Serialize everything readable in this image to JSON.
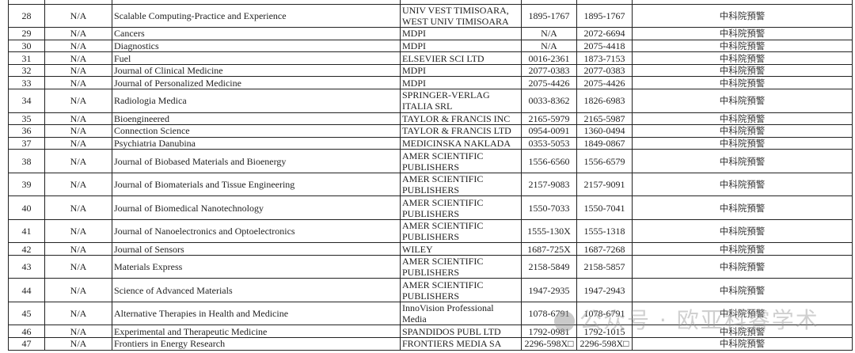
{
  "rows": [
    {
      "no": "28",
      "cat": "N/A",
      "journal": "Scalable Computing-Practice and Experience",
      "publisher": "UNIV VEST TIMISOARA, WEST UNIV TIMISOARA",
      "issn": "1895-1767",
      "eissn": "1895-1767",
      "warning": "中科院預警",
      "tall": true
    },
    {
      "no": "29",
      "cat": "N/A",
      "journal": "Cancers",
      "publisher": "MDPI",
      "issn": "N/A",
      "eissn": "2072-6694",
      "warning": "中科院預警"
    },
    {
      "no": "30",
      "cat": "N/A",
      "journal": "Diagnostics",
      "publisher": "MDPI",
      "issn": "N/A",
      "eissn": "2075-4418",
      "warning": "中科院預警"
    },
    {
      "no": "31",
      "cat": "N/A",
      "journal": "Fuel",
      "publisher": "ELSEVIER SCI LTD",
      "issn": "0016-2361",
      "eissn": "1873-7153",
      "warning": "中科院預警"
    },
    {
      "no": "32",
      "cat": "N/A",
      "journal": "Journal of Clinical Medicine",
      "publisher": "MDPI",
      "issn": "2077-0383",
      "eissn": "2077-0383",
      "warning": "中科院預警"
    },
    {
      "no": "33",
      "cat": "N/A",
      "journal": "Journal of Personalized Medicine",
      "publisher": "MDPI",
      "issn": "2075-4426",
      "eissn": "2075-4426",
      "warning": "中科院預警"
    },
    {
      "no": "34",
      "cat": "N/A",
      "journal": "Radiologia Medica",
      "publisher": "SPRINGER-VERLAG ITALIA SRL",
      "issn": "0033-8362",
      "eissn": "1826-6983",
      "warning": "中科院預警",
      "tall": true
    },
    {
      "no": "35",
      "cat": "N/A",
      "journal": "Bioengineered",
      "publisher": "TAYLOR & FRANCIS INC",
      "issn": "2165-5979",
      "eissn": "2165-5987",
      "warning": "中科院預警"
    },
    {
      "no": "36",
      "cat": "N/A",
      "journal": "Connection Science",
      "publisher": "TAYLOR & FRANCIS LTD",
      "issn": "0954-0091",
      "eissn": "1360-0494",
      "warning": "中科院預警"
    },
    {
      "no": "37",
      "cat": "N/A",
      "journal": "Psychiatria Danubina",
      "publisher": "MEDICINSKA NAKLADA",
      "issn": "0353-5053",
      "eissn": "1849-0867",
      "warning": "中科院預警"
    },
    {
      "no": "38",
      "cat": "N/A",
      "journal": "Journal of Biobased Materials and Bioenergy",
      "publisher": "AMER SCIENTIFIC PUBLISHERS",
      "issn": "1556-6560",
      "eissn": "1556-6579",
      "warning": "中科院預警",
      "tall": true
    },
    {
      "no": "39",
      "cat": "N/A",
      "journal": "Journal of Biomaterials and Tissue Engineering",
      "publisher": "AMER SCIENTIFIC PUBLISHERS",
      "issn": "2157-9083",
      "eissn": "2157-9091",
      "warning": "中科院預警",
      "tall": true
    },
    {
      "no": "40",
      "cat": "N/A",
      "journal": "Journal of Biomedical Nanotechnology",
      "publisher": "AMER SCIENTIFIC PUBLISHERS",
      "issn": "1550-7033",
      "eissn": "1550-7041",
      "warning": "中科院預警",
      "tall": true
    },
    {
      "no": "41",
      "cat": "N/A",
      "journal": "Journal of Nanoelectronics and Optoelectronics",
      "publisher": "AMER SCIENTIFIC PUBLISHERS",
      "issn": "1555-130X",
      "eissn": "1555-1318",
      "warning": "中科院預警",
      "tall": true
    },
    {
      "no": "42",
      "cat": "N/A",
      "journal": "Journal of Sensors",
      "publisher": "WILEY",
      "issn": "1687-725X",
      "eissn": "1687-7268",
      "warning": "中科院預警"
    },
    {
      "no": "43",
      "cat": "N/A",
      "journal": "Materials Express",
      "publisher": "AMER SCIENTIFIC PUBLISHERS",
      "issn": "2158-5849",
      "eissn": "2158-5857",
      "warning": "中科院預警",
      "tall": true
    },
    {
      "no": "44",
      "cat": "N/A",
      "journal": "Science of Advanced Materials",
      "publisher": "AMER SCIENTIFIC PUBLISHERS",
      "issn": "1947-2935",
      "eissn": "1947-2943",
      "warning": "中科院預警",
      "tall": true
    },
    {
      "no": "45",
      "cat": "N/A",
      "journal": "Alternative Therapies in Health and Medicine",
      "publisher": "InnoVision Professional Media",
      "issn": "1078-6791",
      "eissn": "1078-6791",
      "warning": "中科院預警",
      "tall": true
    },
    {
      "no": "46",
      "cat": "N/A",
      "journal": "Experimental and Therapeutic Medicine",
      "publisher": "SPANDIDOS PUBL LTD",
      "issn": "1792-0981",
      "eissn": "1792-1015",
      "warning": "中科院預警"
    },
    {
      "no": "47",
      "cat": "N/A",
      "journal": "Frontiers in Energy Research",
      "publisher": "FRONTIERS MEDIA SA",
      "issn": "2296-598X□",
      "eissn": "2296-598X□",
      "warning": "中科院預警"
    }
  ],
  "watermark": "公众号 · 欧亚科睿学术"
}
